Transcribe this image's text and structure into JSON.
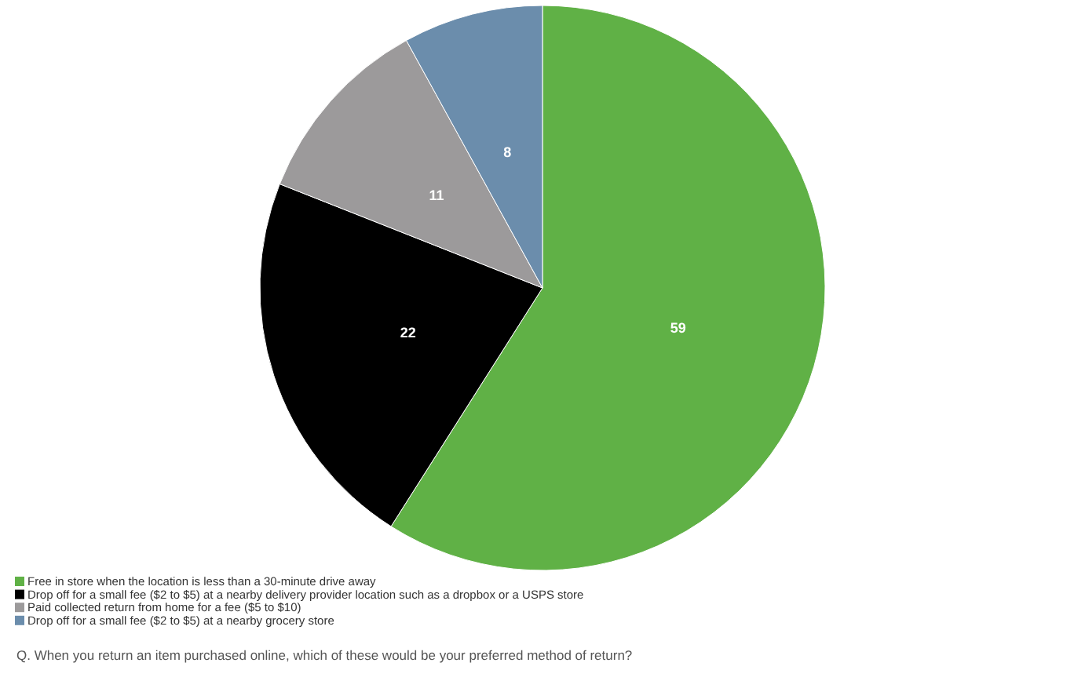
{
  "chart_data": {
    "type": "pie",
    "categories": [
      "Free in store when the location is less than a 30-minute drive away",
      "Drop off for a small fee ($2 to $5) at a nearby delivery provider location such as a dropbox or a USPS store",
      "Paid collected return from home for a fee ($5 to $10)",
      "Drop off for a small fee ($2 to $5) at a nearby grocery store"
    ],
    "values": [
      59,
      22,
      11,
      8
    ],
    "colors": [
      "#60b146",
      "#000000",
      "#9c9a9b",
      "#6b8dac"
    ],
    "data_labels": true,
    "legend": "bottom left",
    "annotations": [
      "Q. When you return an item purchased online, which of these would be your preferred method of return?"
    ]
  }
}
